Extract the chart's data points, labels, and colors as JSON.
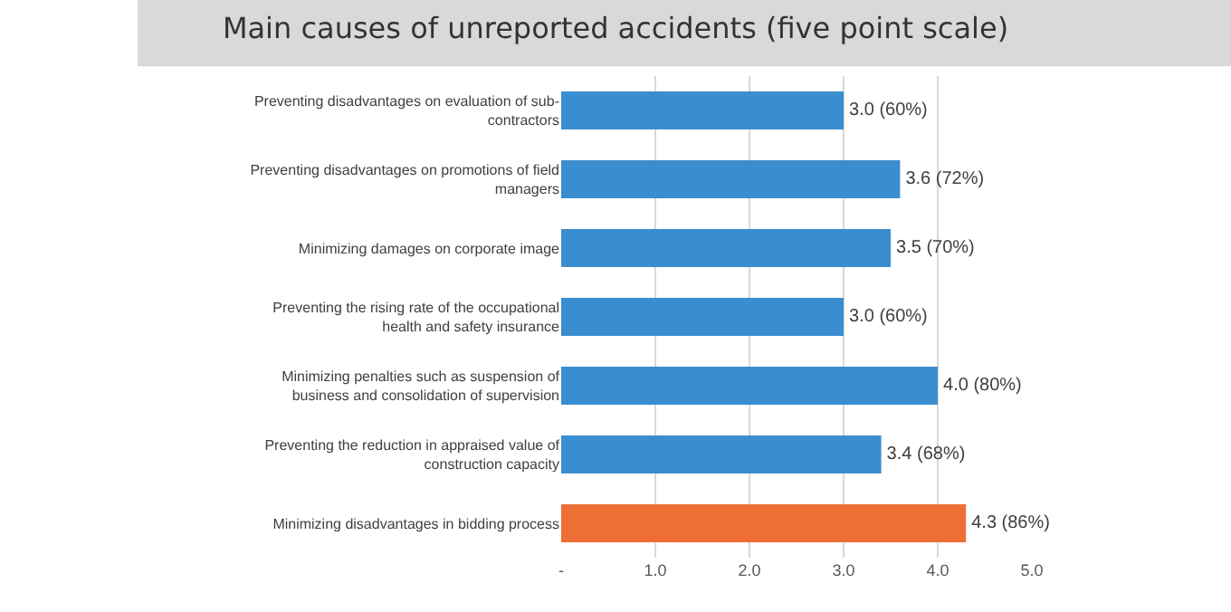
{
  "chart_data": {
    "type": "bar",
    "orientation": "horizontal",
    "title": "Main causes of unreported accidents (five point scale)",
    "categories": [
      "Preventing disadvantages on evaluation of sub-contractors",
      "Preventing disadvantages on promotions of field managers",
      "Minimizing damages on corporate image",
      "Preventing the rising rate of the occupational health and safety insurance",
      "Minimizing penalties such as suspension of business and consolidation of supervision",
      "Preventing the reduction in appraised value of construction capacity",
      "Minimizing disadvantages in bidding process"
    ],
    "values": [
      3.0,
      3.6,
      3.5,
      3.0,
      4.0,
      3.4,
      4.3
    ],
    "value_labels": [
      "3.0 (60%)",
      "3.6 (72%)",
      "3.5 (70%)",
      "3.0 (60%)",
      "4.0 (80%)",
      "3.4 (68%)",
      "4.3 (86%)"
    ],
    "colors": [
      "#3a8dcf",
      "#3a8dcf",
      "#3a8dcf",
      "#3a8dcf",
      "#3a8dcf",
      "#3a8dcf",
      "#ee6f35"
    ],
    "xlim": [
      0,
      5
    ],
    "xticks": [
      {
        "value": 0,
        "label": "-"
      },
      {
        "value": 1,
        "label": "1.0"
      },
      {
        "value": 2,
        "label": "2.0"
      },
      {
        "value": 3,
        "label": "3.0"
      },
      {
        "value": 4,
        "label": "4.0"
      },
      {
        "value": 5,
        "label": "5.0"
      }
    ],
    "grid": "x",
    "legend": false
  }
}
